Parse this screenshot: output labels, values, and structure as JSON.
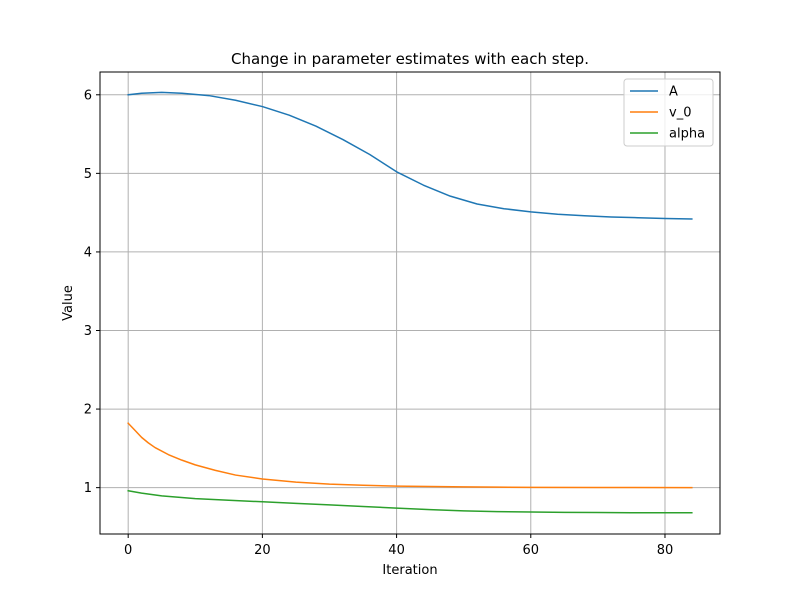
{
  "chart_data": {
    "type": "line",
    "title": "Change in parameter estimates with each step.",
    "xlabel": "Iteration",
    "ylabel": "Value",
    "xlim": [
      -4.2,
      88.2
    ],
    "ylim": [
      0.41,
      6.29
    ],
    "xticks": [
      0,
      20,
      40,
      60,
      80
    ],
    "yticks": [
      1,
      2,
      3,
      4,
      5,
      6
    ],
    "grid": true,
    "legend_position": "upper right",
    "series": [
      {
        "name": "A",
        "color": "#1f77b4",
        "points": [
          [
            0,
            6.0
          ],
          [
            2,
            6.02
          ],
          [
            5,
            6.03
          ],
          [
            8,
            6.02
          ],
          [
            12,
            5.99
          ],
          [
            16,
            5.93
          ],
          [
            20,
            5.85
          ],
          [
            24,
            5.74
          ],
          [
            28,
            5.6
          ],
          [
            32,
            5.43
          ],
          [
            36,
            5.24
          ],
          [
            40,
            5.02
          ],
          [
            44,
            4.85
          ],
          [
            48,
            4.71
          ],
          [
            52,
            4.61
          ],
          [
            56,
            4.55
          ],
          [
            60,
            4.51
          ],
          [
            64,
            4.48
          ],
          [
            68,
            4.46
          ],
          [
            72,
            4.445
          ],
          [
            76,
            4.435
          ],
          [
            80,
            4.425
          ],
          [
            84,
            4.42
          ]
        ]
      },
      {
        "name": "v_0",
        "color": "#ff7f0e",
        "points": [
          [
            0,
            1.82
          ],
          [
            1,
            1.73
          ],
          [
            2,
            1.64
          ],
          [
            3,
            1.57
          ],
          [
            4,
            1.51
          ],
          [
            6,
            1.42
          ],
          [
            8,
            1.35
          ],
          [
            10,
            1.29
          ],
          [
            13,
            1.22
          ],
          [
            16,
            1.16
          ],
          [
            20,
            1.11
          ],
          [
            25,
            1.07
          ],
          [
            30,
            1.045
          ],
          [
            35,
            1.03
          ],
          [
            40,
            1.02
          ],
          [
            45,
            1.015
          ],
          [
            50,
            1.01
          ],
          [
            55,
            1.006
          ],
          [
            60,
            1.004
          ],
          [
            70,
            1.002
          ],
          [
            84,
            1.0
          ]
        ]
      },
      {
        "name": "alpha",
        "color": "#2ca02c",
        "points": [
          [
            0,
            0.96
          ],
          [
            2,
            0.93
          ],
          [
            5,
            0.895
          ],
          [
            10,
            0.86
          ],
          [
            15,
            0.84
          ],
          [
            20,
            0.82
          ],
          [
            25,
            0.8
          ],
          [
            30,
            0.78
          ],
          [
            35,
            0.76
          ],
          [
            40,
            0.74
          ],
          [
            45,
            0.72
          ],
          [
            50,
            0.705
          ],
          [
            55,
            0.695
          ],
          [
            60,
            0.69
          ],
          [
            65,
            0.685
          ],
          [
            70,
            0.683
          ],
          [
            75,
            0.681
          ],
          [
            80,
            0.68
          ],
          [
            84,
            0.68
          ]
        ]
      }
    ]
  }
}
